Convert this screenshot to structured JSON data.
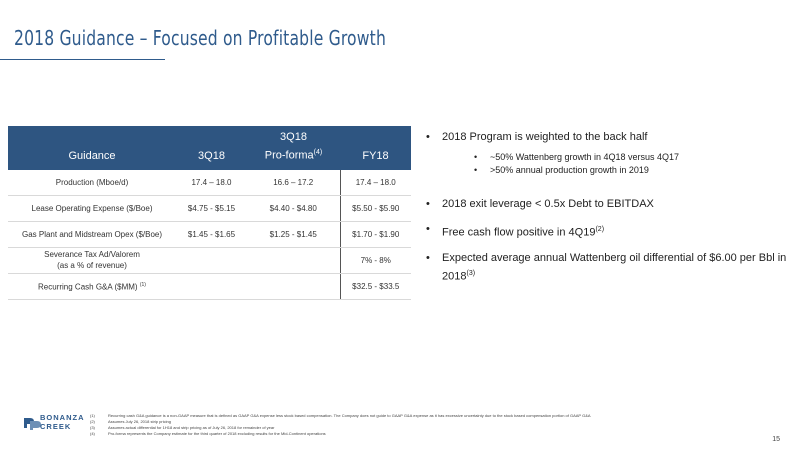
{
  "header": {
    "title": "2018 Guidance – Focused on Profitable Growth"
  },
  "table": {
    "columns": [
      {
        "label": "Guidance",
        "label_line1": "",
        "sup": ""
      },
      {
        "label": "3Q18",
        "label_line1": "",
        "sup": ""
      },
      {
        "label": "Pro-forma",
        "label_line1": "3Q18",
        "sup": "(4)"
      },
      {
        "label": "FY18",
        "label_line1": "",
        "sup": ""
      }
    ],
    "rows": [
      {
        "label": "Production (Mboe/d)",
        "label_line2": "",
        "sup": "",
        "q3": "17.4 – 18.0",
        "proforma": "16.6 – 17.2",
        "fy": "17.4 – 18.0"
      },
      {
        "label": "Lease Operating Expense ($/Boe)",
        "label_line2": "",
        "sup": "",
        "q3": "$4.75 - $5.15",
        "proforma": "$4.40 - $4.80",
        "fy": "$5.50 - $5.90"
      },
      {
        "label": "Gas Plant and Midstream Opex ($/Boe)",
        "label_line2": "",
        "sup": "",
        "q3": "$1.45 - $1.65",
        "proforma": "$1.25 - $1.45",
        "fy": "$1.70 - $1.90"
      },
      {
        "label": "Severance Tax Ad/Valorem",
        "label_line2": "(as a % of revenue)",
        "sup": "",
        "q3": "",
        "proforma": "",
        "fy": "7% - 8%"
      },
      {
        "label": "Recurring Cash G&A ($MM)",
        "label_line2": "",
        "sup": "(1)",
        "q3": "",
        "proforma": "",
        "fy": "$32.5 - $33.5"
      }
    ]
  },
  "bullets": {
    "b1": {
      "text": "2018 Program is weighted to the back half"
    },
    "b1_sub": [
      {
        "text": "~50% Wattenberg growth in 4Q18 versus 4Q17"
      },
      {
        "text": ">50% annual production growth in 2019"
      }
    ],
    "b2": {
      "text": "2018 exit leverage < 0.5x Debt to EBITDAX"
    },
    "b3": {
      "text": "Free cash flow positive in 4Q19",
      "sup": "(2)"
    },
    "b4": {
      "text": "Expected average annual Wattenberg oil differential of $6.00 per Bbl in 2018",
      "sup": "(3)"
    },
    "bullet_char": "•"
  },
  "footnotes": [
    {
      "num": "(1)",
      "text": "Recurring cash G&A guidance is a non-GAAP measure that is defined as GAAP G&A expense less stock based compensation. The Company does not guide to GAAP G&A expense as it has excessive uncertainty due to the stock based compensation portion of GAAP G&A"
    },
    {
      "num": "(2)",
      "text": "Assumes July 26, 2018 strip pricing"
    },
    {
      "num": "(3)",
      "text": "Assumes actual differential for 1H18 and strip pricing as of July 26, 2018 for remainder of year"
    },
    {
      "num": "(4)",
      "text": "Pro-forma represents the Company estimate for the third quarter of 2018 excluding results for the Mid-Continent operations"
    }
  ],
  "logo": {
    "line1": "BONANZA",
    "line2": "CREEK",
    "color": "#2f5b8c"
  },
  "page_number": "15",
  "colors": {
    "title": "#2f5b8c",
    "table_header": "#2e5581"
  }
}
